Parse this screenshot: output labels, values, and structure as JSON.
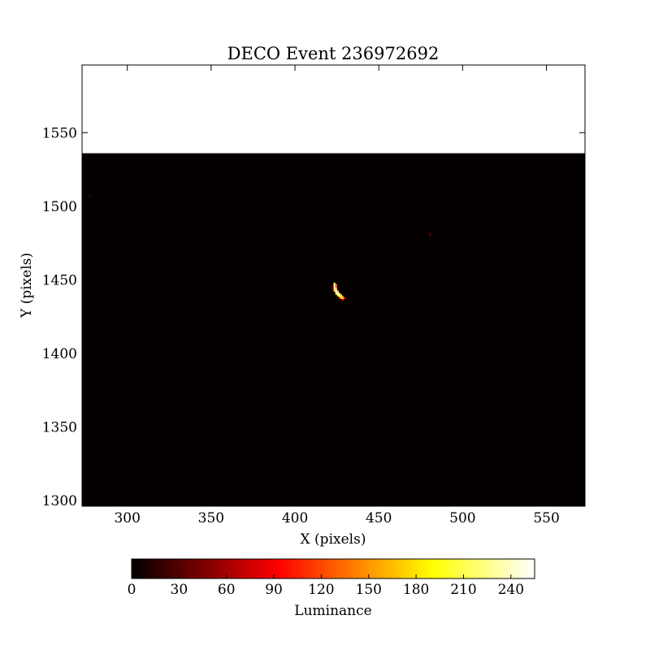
{
  "chart_data": {
    "type": "heatmap",
    "title": "DECO Event 236972692",
    "xlabel": "X (pixels)",
    "ylabel": "Y (pixels)",
    "xlim": [
      273,
      573
    ],
    "ylim": [
      1296,
      1596
    ],
    "image_extent": {
      "x": [
        273,
        573
      ],
      "y": [
        1296,
        1536
      ]
    },
    "xticks": [
      300,
      350,
      400,
      450,
      500,
      550
    ],
    "yticks": [
      1300,
      1350,
      1400,
      1450,
      1500,
      1550
    ],
    "grid": false,
    "colormap": "hot",
    "background_value": 2,
    "colorbar": {
      "label": "Luminance",
      "orientation": "horizontal",
      "placement": "bottom",
      "range": [
        0,
        255
      ],
      "ticks": [
        0,
        30,
        60,
        90,
        120,
        150,
        180,
        210,
        240
      ],
      "colors": [
        "#000000",
        "#ff0000",
        "#ffff00",
        "#ffffff"
      ]
    },
    "hot_pixels": [
      {
        "x": 423,
        "y": 1447,
        "value": 200
      },
      {
        "x": 423,
        "y": 1446,
        "value": 255
      },
      {
        "x": 424,
        "y": 1446,
        "value": 140
      },
      {
        "x": 423,
        "y": 1445,
        "value": 255
      },
      {
        "x": 424,
        "y": 1445,
        "value": 120
      },
      {
        "x": 423,
        "y": 1444,
        "value": 250
      },
      {
        "x": 424,
        "y": 1444,
        "value": 150
      },
      {
        "x": 423,
        "y": 1443,
        "value": 240
      },
      {
        "x": 424,
        "y": 1443,
        "value": 200
      },
      {
        "x": 423,
        "y": 1442,
        "value": 160
      },
      {
        "x": 424,
        "y": 1442,
        "value": 255
      },
      {
        "x": 425,
        "y": 1442,
        "value": 120
      },
      {
        "x": 424,
        "y": 1441,
        "value": 255
      },
      {
        "x": 425,
        "y": 1441,
        "value": 230
      },
      {
        "x": 424,
        "y": 1440,
        "value": 180
      },
      {
        "x": 425,
        "y": 1440,
        "value": 255
      },
      {
        "x": 426,
        "y": 1440,
        "value": 210
      },
      {
        "x": 425,
        "y": 1439,
        "value": 200
      },
      {
        "x": 426,
        "y": 1439,
        "value": 255
      },
      {
        "x": 427,
        "y": 1439,
        "value": 180
      },
      {
        "x": 426,
        "y": 1438,
        "value": 190
      },
      {
        "x": 427,
        "y": 1438,
        "value": 230
      },
      {
        "x": 428,
        "y": 1438,
        "value": 140
      },
      {
        "x": 427,
        "y": 1437,
        "value": 170
      },
      {
        "x": 428,
        "y": 1437,
        "value": 190
      },
      {
        "x": 429,
        "y": 1437,
        "value": 100
      },
      {
        "x": 428,
        "y": 1436,
        "value": 90
      },
      {
        "x": 426,
        "y": 1437,
        "value": 70
      },
      {
        "x": 422,
        "y": 1445,
        "value": 60
      },
      {
        "x": 422,
        "y": 1443,
        "value": 50
      },
      {
        "x": 480,
        "y": 1480,
        "value": 40
      },
      {
        "x": 480,
        "y": 1481,
        "value": 25
      },
      {
        "x": 277,
        "y": 1506,
        "value": 25
      }
    ]
  }
}
